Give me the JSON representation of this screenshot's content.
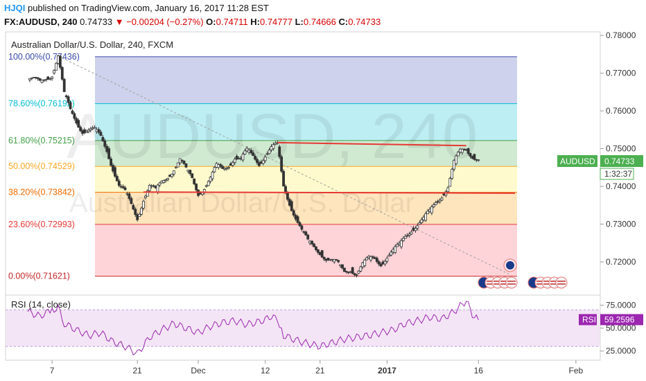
{
  "header": {
    "publisher": "HJQI",
    "published_text": "published on TradingView.com, January 16, 2017 11:28 EST",
    "symbol": "FX:AUDUSD, 240",
    "last": "0.74733",
    "change": "−0.00204 (−0.27%)",
    "o_label": "O:",
    "o": "0.74711",
    "h_label": "H:",
    "h": "0.74777",
    "l_label": "L:",
    "l": "0.74666",
    "c_label": "C:",
    "c": "0.74733"
  },
  "colors": {
    "up": "#26a69a",
    "down": "#ef5350",
    "candle": "#333333",
    "trendline": "#e53935",
    "rsi_line": "#9c27b0",
    "rsi_band": "#f3e5f5"
  },
  "chart_data": {
    "type": "candlestick",
    "title": "Australian Dollar/U.S. Dollar, 240, FXCM",
    "watermark": "AUDUSD, 240",
    "watermark_sub": "Australian Dollar/U.S. Dollar",
    "price_axis": {
      "ticks": [
        "0.78000",
        "0.77000",
        "0.76000",
        "0.75000",
        "0.74000",
        "0.73000",
        "0.72000"
      ],
      "ylim": [
        0.7123,
        0.7802
      ]
    },
    "time_axis": {
      "ticks": [
        "7",
        "21",
        "Dec",
        "12",
        "21",
        "2017",
        "16",
        "Feb"
      ],
      "xlim": [
        "2016-11-03",
        "2017-02-05"
      ]
    },
    "last_price_label": {
      "symbol": "AUDUSD",
      "value": "0.74733",
      "countdown": "1:32:37"
    },
    "fibonacci": [
      {
        "label": "100.00%(0.77436)",
        "price": 0.77436,
        "color": "#3949ab",
        "fill": "#c5cae9"
      },
      {
        "label": "78.60%(0.76192)",
        "price": 0.76192,
        "color": "#00bcd4",
        "fill": "#b2ebf2"
      },
      {
        "label": "61.80%(0.75215)",
        "price": 0.75215,
        "color": "#43a047",
        "fill": "#c8e6c9"
      },
      {
        "label": "50.00%(0.74529)",
        "price": 0.74529,
        "color": "#f9a825",
        "fill": "#fff9c4"
      },
      {
        "label": "38.20%(0.73842)",
        "price": 0.73842,
        "color": "#ef6c00",
        "fill": "#ffe0b2"
      },
      {
        "label": "23.60%(0.72993)",
        "price": 0.72993,
        "color": "#e53935",
        "fill": "#ffcdd2"
      },
      {
        "label": "0.00%(0.71621)",
        "price": 0.71621,
        "color": "#c62828",
        "fill": "#ffffff"
      }
    ],
    "trendlines": [
      {
        "name": "resistance",
        "from": [
          "2016-12-14",
          0.7516
        ],
        "to": [
          "2017-01-14",
          0.7508
        ]
      },
      {
        "name": "neckline",
        "from": [
          "2016-11-22",
          0.7385
        ],
        "to": [
          "2017-01-22",
          0.7382
        ]
      }
    ],
    "diagonal": {
      "from": [
        "2016-11-08",
        0.7745
      ],
      "to": [
        "2017-01-21",
        0.7168
      ]
    },
    "closes": [
      [
        "2016-11-03",
        0.7682
      ],
      [
        "2016-11-05",
        0.7675
      ],
      [
        "2016-11-06",
        0.769
      ],
      [
        "2016-11-07",
        0.77
      ],
      [
        "2016-11-08",
        0.7745
      ],
      [
        "2016-11-09",
        0.764
      ],
      [
        "2016-11-10",
        0.76
      ],
      [
        "2016-11-11",
        0.7575
      ],
      [
        "2016-11-12",
        0.755
      ],
      [
        "2016-11-14",
        0.7545
      ],
      [
        "2016-11-15",
        0.753
      ],
      [
        "2016-11-16",
        0.75
      ],
      [
        "2016-11-17",
        0.745
      ],
      [
        "2016-11-18",
        0.74
      ],
      [
        "2016-11-19",
        0.738
      ],
      [
        "2016-11-20",
        0.735
      ],
      [
        "2016-11-21",
        0.732
      ],
      [
        "2016-11-22",
        0.737
      ],
      [
        "2016-11-23",
        0.74
      ],
      [
        "2016-11-24",
        0.7385
      ],
      [
        "2016-11-25",
        0.741
      ],
      [
        "2016-11-26",
        0.743
      ],
      [
        "2016-11-27",
        0.745
      ],
      [
        "2016-11-28",
        0.747
      ],
      [
        "2016-11-29",
        0.744
      ],
      [
        "2016-11-30",
        0.742
      ],
      [
        "2016-12-01",
        0.7385
      ],
      [
        "2016-12-02",
        0.74
      ],
      [
        "2016-12-03",
        0.742
      ],
      [
        "2016-12-04",
        0.745
      ],
      [
        "2016-12-05",
        0.7445
      ],
      [
        "2016-12-06",
        0.746
      ],
      [
        "2016-12-07",
        0.748
      ],
      [
        "2016-12-08",
        0.747
      ],
      [
        "2016-12-09",
        0.749
      ],
      [
        "2016-12-10",
        0.748
      ],
      [
        "2016-12-11",
        0.7465
      ],
      [
        "2016-12-12",
        0.7485
      ],
      [
        "2016-12-13",
        0.75
      ],
      [
        "2016-12-14",
        0.7505
      ],
      [
        "2016-12-15",
        0.74
      ],
      [
        "2016-12-16",
        0.736
      ],
      [
        "2016-12-17",
        0.732
      ],
      [
        "2016-12-18",
        0.728
      ],
      [
        "2016-12-19",
        0.725
      ],
      [
        "2016-12-20",
        0.724
      ],
      [
        "2016-12-21",
        0.723
      ],
      [
        "2016-12-22",
        0.721
      ],
      [
        "2016-12-23",
        0.72
      ],
      [
        "2016-12-24",
        0.719
      ],
      [
        "2016-12-25",
        0.7175
      ],
      [
        "2016-12-26",
        0.7185
      ],
      [
        "2016-12-27",
        0.717
      ],
      [
        "2016-12-28",
        0.719
      ],
      [
        "2016-12-29",
        0.7205
      ],
      [
        "2016-12-30",
        0.721
      ],
      [
        "2016-12-31",
        0.72
      ],
      [
        "2017-01-01",
        0.7215
      ],
      [
        "2017-01-02",
        0.7225
      ],
      [
        "2017-01-03",
        0.724
      ],
      [
        "2017-01-04",
        0.727
      ],
      [
        "2017-01-05",
        0.729
      ],
      [
        "2017-01-06",
        0.73
      ],
      [
        "2017-01-07",
        0.731
      ],
      [
        "2017-01-08",
        0.733
      ],
      [
        "2017-01-09",
        0.736
      ],
      [
        "2017-01-10",
        0.738
      ],
      [
        "2017-01-11",
        0.74
      ],
      [
        "2017-01-12",
        0.746
      ],
      [
        "2017-01-13",
        0.749
      ],
      [
        "2017-01-14",
        0.75
      ],
      [
        "2017-01-15",
        0.7485
      ],
      [
        "2017-01-16",
        0.7473
      ]
    ],
    "rsi": {
      "label": "RSI (14, close)",
      "ticks": [
        "75.0000",
        "50.0000",
        "25.0000"
      ],
      "ylim": [
        18,
        83
      ],
      "band": [
        30,
        70
      ],
      "last": "59.2596",
      "last_value": 59.2596,
      "series_label": "RSI",
      "values": [
        [
          "2016-11-03",
          68
        ],
        [
          "2016-11-05",
          63
        ],
        [
          "2016-11-07",
          70
        ],
        [
          "2016-11-08",
          72
        ],
        [
          "2016-11-09",
          55
        ],
        [
          "2016-11-11",
          48
        ],
        [
          "2016-11-13",
          42
        ],
        [
          "2016-11-15",
          45
        ],
        [
          "2016-11-17",
          35
        ],
        [
          "2016-11-19",
          30
        ],
        [
          "2016-11-21",
          22
        ],
        [
          "2016-11-23",
          40
        ],
        [
          "2016-11-25",
          48
        ],
        [
          "2016-11-27",
          55
        ],
        [
          "2016-11-29",
          50
        ],
        [
          "2016-12-01",
          45
        ],
        [
          "2016-12-03",
          52
        ],
        [
          "2016-12-05",
          56
        ],
        [
          "2016-12-07",
          58
        ],
        [
          "2016-12-09",
          54
        ],
        [
          "2016-12-11",
          57
        ],
        [
          "2016-12-13",
          62
        ],
        [
          "2016-12-14",
          60
        ],
        [
          "2016-12-15",
          42
        ],
        [
          "2016-12-17",
          37
        ],
        [
          "2016-12-19",
          33
        ],
        [
          "2016-12-21",
          30
        ],
        [
          "2016-12-23",
          34
        ],
        [
          "2016-12-25",
          38
        ],
        [
          "2016-12-27",
          40
        ],
        [
          "2016-12-29",
          42
        ],
        [
          "2016-12-31",
          45
        ],
        [
          "2017-01-02",
          48
        ],
        [
          "2017-01-04",
          55
        ],
        [
          "2017-01-06",
          58
        ],
        [
          "2017-01-08",
          62
        ],
        [
          "2017-01-10",
          60
        ],
        [
          "2017-01-12",
          68
        ],
        [
          "2017-01-14",
          80
        ],
        [
          "2017-01-15",
          65
        ],
        [
          "2017-01-16",
          59
        ]
      ]
    }
  }
}
